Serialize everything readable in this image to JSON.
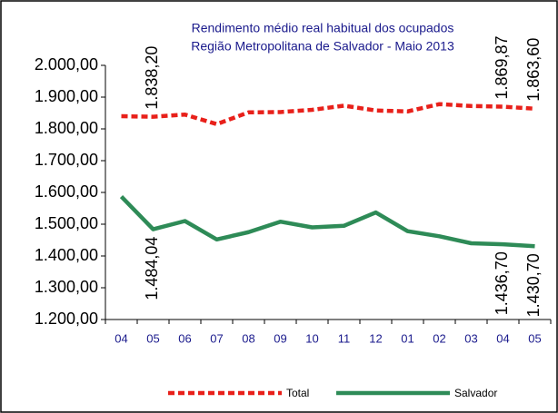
{
  "chart_data": {
    "type": "line",
    "title": "Rendimento médio real habitual dos ocupados",
    "subtitle": "Região Metropolitana de Salvador - Maio 2013",
    "categories": [
      "04",
      "05",
      "06",
      "07",
      "08",
      "09",
      "10",
      "11",
      "12",
      "01",
      "02",
      "03",
      "04",
      "05"
    ],
    "series": [
      {
        "name": "Total",
        "color": "#e8201a",
        "dashed": true,
        "values": [
          1840,
          1838.2,
          1845,
          1815,
          1852,
          1853,
          1860,
          1873,
          1858,
          1855,
          1878,
          1872,
          1869.87,
          1863.6
        ],
        "value_labels": [
          null,
          "1.838,20",
          null,
          null,
          null,
          null,
          null,
          null,
          null,
          null,
          null,
          null,
          "1.869,87",
          "1.863,60"
        ]
      },
      {
        "name": "Salvador",
        "color": "#2e8b57",
        "dashed": false,
        "values": [
          1587,
          1484.04,
          1510,
          1452,
          1475,
          1508,
          1490,
          1495,
          1537,
          1478,
          1462,
          1440,
          1436.7,
          1430.7
        ],
        "value_labels": [
          null,
          "1.484,04",
          null,
          null,
          null,
          null,
          null,
          null,
          null,
          null,
          null,
          null,
          "1.436,70",
          "1.430,70"
        ]
      }
    ],
    "ylim": [
      1200,
      2000
    ],
    "yticks": [
      {
        "value": 1200,
        "label": "1.200,00"
      },
      {
        "value": 1300,
        "label": "1.300,00"
      },
      {
        "value": 1400,
        "label": "1.400,00"
      },
      {
        "value": 1500,
        "label": "1.500,00"
      },
      {
        "value": 1600,
        "label": "1.600,00"
      },
      {
        "value": 1700,
        "label": "1.700,00"
      },
      {
        "value": 1800,
        "label": "1.800,00"
      },
      {
        "value": 1900,
        "label": "1.900,00"
      },
      {
        "value": 2000,
        "label": "2.000,00"
      }
    ]
  }
}
